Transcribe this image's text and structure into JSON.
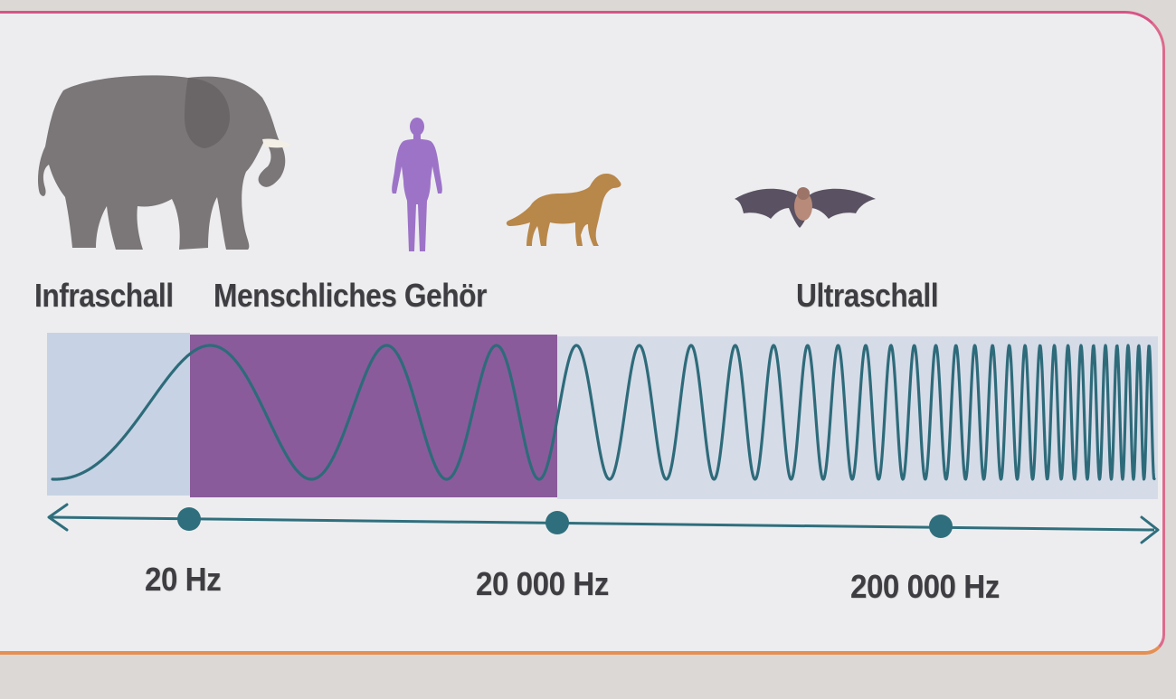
{
  "categories": {
    "infra": "Infraschall",
    "human": "Menschliches Gehör",
    "ultra": "Ultraschall"
  },
  "axis": {
    "ticks": [
      "20 Hz",
      "20 000 Hz",
      "200 000 Hz"
    ]
  },
  "colors": {
    "infra_band": "#c7d3e4",
    "human_band": "#8a5b9b",
    "ultra_band": "#d6dbe8",
    "wave": "#2e6b7a",
    "axis": "#2f6f7d",
    "elephant": "#7b7778",
    "human_figure": "#9d73c8",
    "dog": "#b8874a",
    "bat": "#5a5262"
  },
  "icons": [
    "elephant-icon",
    "human-icon",
    "dog-icon",
    "bat-icon"
  ]
}
